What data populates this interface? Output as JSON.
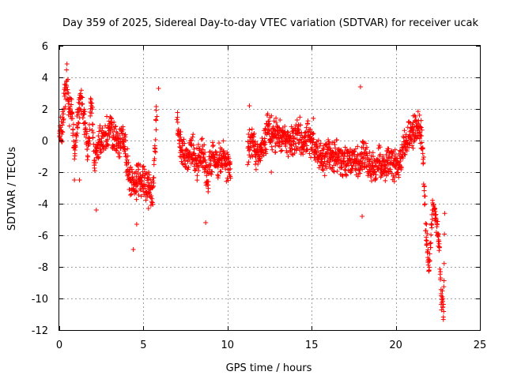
{
  "chart_data": {
    "type": "scatter",
    "title": "Day 359 of 2025, Sidereal Day-to-day VTEC variation (SDTVAR) for receiver ucak",
    "xlabel": "GPS time / hours",
    "ylabel": "SDTVAR / TECUs",
    "xlim": [
      0,
      25
    ],
    "ylim": [
      -12,
      6
    ],
    "xticks": [
      0,
      5,
      10,
      15,
      20,
      25
    ],
    "yticks": [
      -12,
      -10,
      -8,
      -6,
      -4,
      -2,
      0,
      2,
      4,
      6
    ],
    "grid": true,
    "marker": "+",
    "color": "#ff0000",
    "series": [
      {
        "name": "SDTVAR",
        "trend": [
          [
            0.0,
            0.6
          ],
          [
            0.15,
            0.3
          ],
          [
            0.3,
            2.8
          ],
          [
            0.45,
            4.0
          ],
          [
            0.6,
            1.8
          ],
          [
            0.75,
            2.0
          ],
          [
            0.9,
            -1.0
          ],
          [
            1.1,
            1.6
          ],
          [
            1.3,
            2.6
          ],
          [
            1.5,
            1.2
          ],
          [
            1.7,
            -0.6
          ],
          [
            1.9,
            2.6
          ],
          [
            2.1,
            -1.4
          ],
          [
            2.3,
            -0.4
          ],
          [
            2.6,
            0.2
          ],
          [
            2.9,
            0.6
          ],
          [
            3.2,
            0.6
          ],
          [
            3.5,
            -0.4
          ],
          [
            3.8,
            0.4
          ],
          [
            4.1,
            -2.0
          ],
          [
            4.4,
            -2.8
          ],
          [
            4.7,
            -2.6
          ],
          [
            5.0,
            -2.5
          ],
          [
            5.3,
            -3.0
          ],
          [
            5.55,
            -3.5
          ],
          [
            5.8,
            1.8
          ],
          [
            7.0,
            1.2
          ],
          [
            7.3,
            -0.6
          ],
          [
            7.6,
            -1.0
          ],
          [
            7.9,
            -0.4
          ],
          [
            8.2,
            -1.5
          ],
          [
            8.5,
            -0.6
          ],
          [
            8.8,
            -2.5
          ],
          [
            9.1,
            -0.7
          ],
          [
            9.4,
            -1.4
          ],
          [
            9.7,
            -1.0
          ],
          [
            10.0,
            -1.8
          ],
          [
            10.2,
            -1.7
          ],
          [
            11.2,
            -0.6
          ],
          [
            11.5,
            0.0
          ],
          [
            11.8,
            -1.2
          ],
          [
            12.1,
            -0.3
          ],
          [
            12.4,
            0.6
          ],
          [
            12.7,
            0.5
          ],
          [
            13.0,
            0.2
          ],
          [
            13.3,
            0.4
          ],
          [
            13.6,
            0.0
          ],
          [
            13.9,
            0.0
          ],
          [
            14.2,
            0.6
          ],
          [
            14.5,
            -0.2
          ],
          [
            14.8,
            0.2
          ],
          [
            15.1,
            -0.3
          ],
          [
            15.4,
            -0.8
          ],
          [
            15.7,
            -1.4
          ],
          [
            16.0,
            -0.8
          ],
          [
            16.3,
            -1.2
          ],
          [
            16.6,
            -1.0
          ],
          [
            16.9,
            -1.6
          ],
          [
            17.2,
            -1.4
          ],
          [
            17.5,
            -1.2
          ],
          [
            17.8,
            -1.6
          ],
          [
            18.1,
            -0.8
          ],
          [
            18.4,
            -1.6
          ],
          [
            18.7,
            -1.8
          ],
          [
            19.0,
            -1.2
          ],
          [
            19.3,
            -1.8
          ],
          [
            19.6,
            -1.0
          ],
          [
            19.9,
            -1.6
          ],
          [
            20.2,
            -1.4
          ],
          [
            20.5,
            -0.3
          ],
          [
            20.8,
            0.3
          ],
          [
            21.1,
            0.8
          ],
          [
            21.4,
            1.0
          ],
          [
            21.6,
            -0.4
          ],
          [
            21.8,
            -6.0
          ],
          [
            22.0,
            -8.0
          ],
          [
            22.2,
            -4.2
          ],
          [
            22.4,
            -5.0
          ],
          [
            22.6,
            -7.0
          ],
          [
            22.7,
            -10.0
          ],
          [
            22.85,
            -10.8
          ],
          [
            22.9,
            -4.0
          ]
        ],
        "outliers": [
          [
            4.4,
            -6.9
          ],
          [
            4.6,
            -5.3
          ],
          [
            5.3,
            -4.3
          ],
          [
            8.7,
            -5.2
          ],
          [
            2.2,
            -4.4
          ],
          [
            0.9,
            -2.5
          ],
          [
            1.2,
            -2.5
          ],
          [
            17.9,
            3.4
          ],
          [
            18.0,
            -4.8
          ],
          [
            15.1,
            1.4
          ],
          [
            11.3,
            2.2
          ],
          [
            5.9,
            3.3
          ],
          [
            12.6,
            -2.0
          ],
          [
            21.2,
            1.3
          ]
        ]
      }
    ]
  }
}
